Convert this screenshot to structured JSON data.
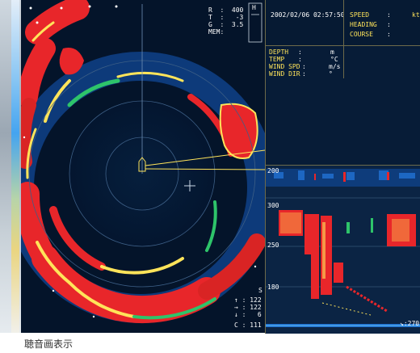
{
  "sonar": {
    "range_label": "R",
    "range_value": "400",
    "tilt_label": "T",
    "tilt_value": "-3",
    "gain_label": "G",
    "gain_value": "3.5",
    "mem_label": "MEM",
    "mem_value": "",
    "h_marker": "H",
    "bottom_readouts": [
      "122",
      "122",
      "6",
      "111"
    ],
    "bottom_labels": [
      "",
      "",
      "",
      "C"
    ],
    "bottom_right_mark": "S"
  },
  "nav": {
    "datetime": "2002/02/06 02:57:50",
    "speed_label": "SPEED",
    "speed_unit": "kt",
    "heading_label": "HEADING",
    "course_label": "COURSE"
  },
  "env": {
    "depth_label": "DEPTH",
    "depth_unit": "m",
    "temp_label": "TEMP",
    "temp_unit": "°C",
    "wind_spd_label": "WIND SPD",
    "wind_spd_unit": "m/s",
    "wind_dir_label": "WIND DIR",
    "wind_dir_unit": "°"
  },
  "echo": {
    "depth_labels": [
      "200",
      "300",
      "250",
      "180"
    ],
    "bottom_value": "270"
  },
  "caption": "聴音画表示",
  "colors": {
    "background": "#04142a",
    "echo_red": "#e8262a",
    "echo_yellow": "#ffe45a",
    "echo_green": "#2ec46a",
    "echo_blue": "#1f6fd0",
    "label_yellow": "#ffe45a"
  }
}
